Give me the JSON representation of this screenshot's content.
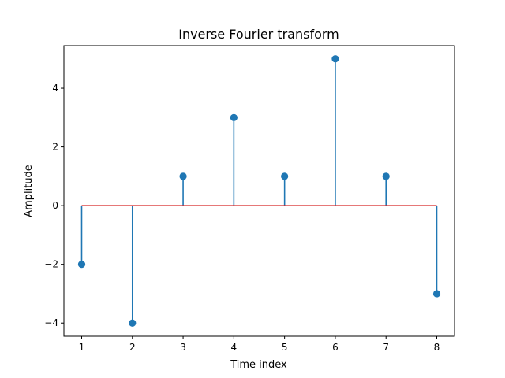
{
  "chart_data": {
    "type": "stem",
    "title": "Inverse Fourier transform",
    "xlabel": "Time index",
    "ylabel": "Amplitude",
    "x": [
      1,
      2,
      3,
      4,
      5,
      6,
      7,
      8
    ],
    "values": [
      -2,
      -4,
      1,
      3,
      1,
      5,
      1,
      -3
    ],
    "xlim": [
      0.65,
      8.35
    ],
    "ylim": [
      -4.45,
      5.45
    ],
    "xticks": [
      1,
      2,
      3,
      4,
      5,
      6,
      7,
      8
    ],
    "yticks": [
      -4,
      -2,
      0,
      2,
      4
    ],
    "ytick_labels": [
      "−4",
      "−2",
      "0",
      "2",
      "4"
    ],
    "baseline": 0,
    "grid": false,
    "colors": {
      "stem": "#1f77b4",
      "baseline": "#d62728"
    }
  }
}
